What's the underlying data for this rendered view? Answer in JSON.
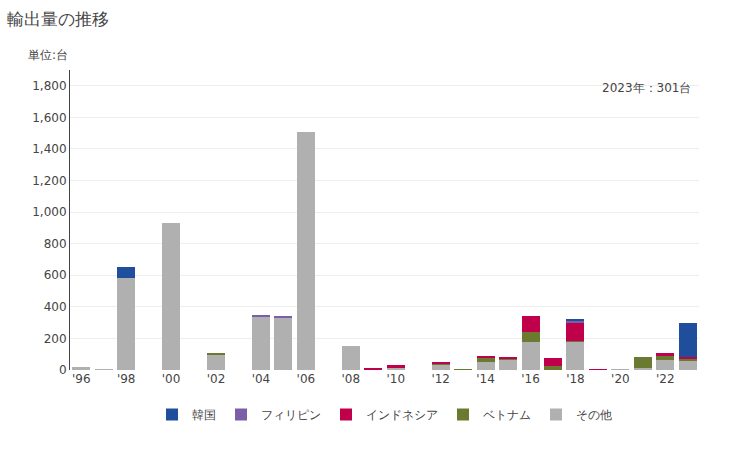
{
  "chart_data": {
    "type": "bar",
    "stacked": true,
    "title": "輸出量の推移",
    "ylabel": "単位:台",
    "annotations": [
      "2023年：301台"
    ],
    "categories": [
      "'96",
      null,
      "'98",
      null,
      "'00",
      null,
      "'02",
      null,
      "'04",
      null,
      "'06",
      null,
      "'08",
      null,
      "'10",
      null,
      "'12",
      null,
      "'14",
      null,
      "'16",
      null,
      "'18",
      null,
      "'20",
      null,
      "'22",
      null
    ],
    "series": [
      {
        "name": "その他",
        "color": "#b0b0b0",
        "values": [
          20,
          5,
          580,
          0,
          930,
          0,
          100,
          0,
          340,
          330,
          1510,
          0,
          155,
          0,
          10,
          0,
          35,
          0,
          50,
          65,
          180,
          0,
          180,
          0,
          5,
          10,
          65,
          55
        ]
      },
      {
        "name": "ベトナム",
        "color": "#6a7a30",
        "values": [
          0,
          0,
          0,
          0,
          0,
          0,
          5,
          0,
          0,
          0,
          0,
          0,
          0,
          0,
          0,
          0,
          5,
          5,
          30,
          10,
          60,
          25,
          5,
          0,
          0,
          75,
          25,
          20
        ]
      },
      {
        "name": "インドネシア",
        "color": "#c0004a",
        "values": [
          0,
          0,
          0,
          0,
          0,
          0,
          0,
          0,
          0,
          0,
          0,
          0,
          0,
          10,
          20,
          0,
          5,
          0,
          5,
          5,
          100,
          50,
          110,
          5,
          0,
          0,
          20,
          10
        ]
      },
      {
        "name": "フィリピン",
        "color": "#7b5ea7",
        "values": [
          0,
          0,
          0,
          0,
          0,
          0,
          0,
          0,
          10,
          10,
          0,
          0,
          0,
          0,
          0,
          0,
          0,
          0,
          0,
          0,
          0,
          0,
          20,
          0,
          0,
          0,
          0,
          0
        ]
      },
      {
        "name": "韓国",
        "color": "#1f4e9c",
        "values": [
          0,
          0,
          70,
          0,
          0,
          0,
          0,
          0,
          0,
          0,
          0,
          0,
          0,
          0,
          0,
          0,
          0,
          0,
          0,
          0,
          0,
          0,
          5,
          0,
          0,
          0,
          0,
          215
        ]
      }
    ],
    "ylim": [
      0,
      1900
    ],
    "yticks": [
      0,
      200,
      400,
      600,
      800,
      {
        "value": 1000,
        "label": "1,000"
      },
      {
        "value": 1200,
        "label": "1,200"
      },
      {
        "value": 1400,
        "label": "1,400"
      },
      {
        "value": 1600,
        "label": "1,600"
      },
      {
        "value": 1800,
        "label": "1,800"
      }
    ],
    "grid": true,
    "legend": "bottom"
  }
}
